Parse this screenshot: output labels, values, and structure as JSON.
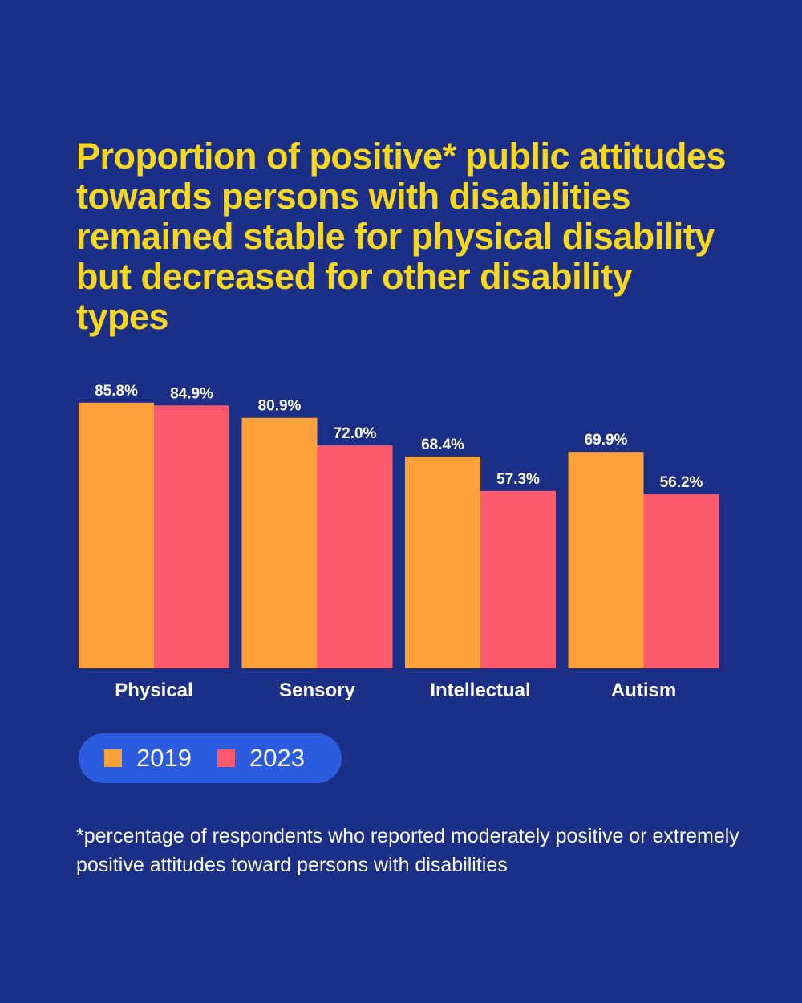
{
  "title": "Proportion of positive* public attitudes towards persons with disabilities remained stable for physical disability but decreased for other disability types",
  "footnote": "*percentage of respondents who reported moderately positive or extremely positive attitudes toward persons with disabilities",
  "colors": {
    "background": "#1c2f86",
    "title": "#f9d71c",
    "legend_bg": "#2b5ce0"
  },
  "chart_data": {
    "type": "bar",
    "title": "Proportion of positive* public attitudes towards persons with disabilities remained stable for physical disability but decreased for other disability types",
    "categories": [
      "Physical",
      "Sensory",
      "Intellectual",
      "Autism"
    ],
    "series": [
      {
        "name": "2019",
        "color": "#fea13a",
        "values": [
          85.8,
          80.9,
          68.4,
          69.9
        ],
        "labels": [
          "85.8%",
          "80.9%",
          "68.4%",
          "69.9%"
        ]
      },
      {
        "name": "2023",
        "color": "#fc5a6f",
        "values": [
          84.9,
          72.0,
          57.3,
          56.2
        ],
        "labels": [
          "84.9%",
          "72.0%",
          "57.3%",
          "56.2%"
        ]
      }
    ],
    "xlabel": "",
    "ylabel": "",
    "ylim": [
      0,
      100
    ],
    "grid": false,
    "legend": "bottom-left"
  }
}
